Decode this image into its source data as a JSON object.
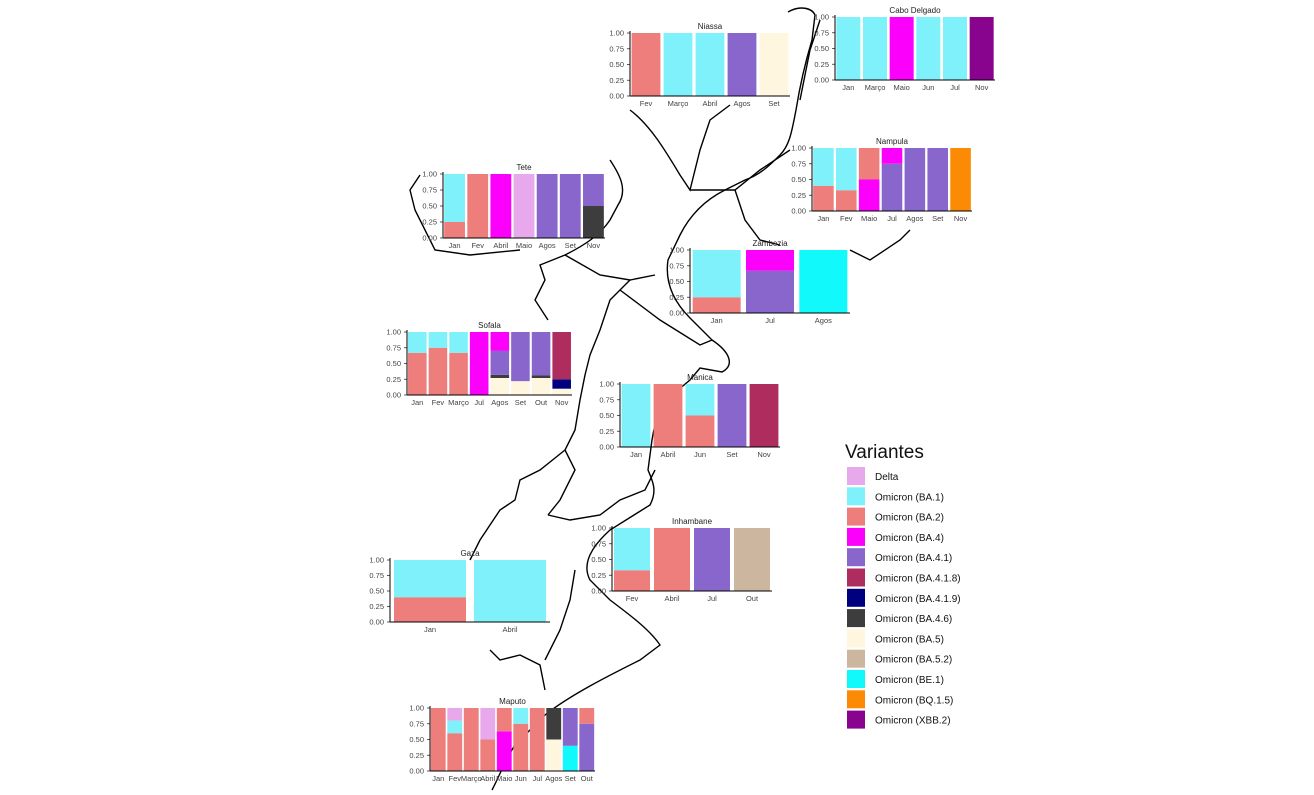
{
  "legend": {
    "title": "Variantes",
    "items": [
      {
        "key": "Delta",
        "label": "Delta",
        "color": "#e8a9ec"
      },
      {
        "key": "BA.1",
        "label": "Omicron (BA.1)",
        "color": "#7ff1fb"
      },
      {
        "key": "BA.2",
        "label": "Omicron (BA.2)",
        "color": "#ee7e7c"
      },
      {
        "key": "BA.4",
        "label": "Omicron (BA.4)",
        "color": "#fb00fb"
      },
      {
        "key": "BA.4.1",
        "label": "Omicron (BA.4.1)",
        "color": "#8866cc"
      },
      {
        "key": "BA.4.1.8",
        "label": "Omicron (BA.4.1.8)",
        "color": "#ae2d5e"
      },
      {
        "key": "BA.4.1.9",
        "label": "Omicron (BA.4.1.9)",
        "color": "#00007f"
      },
      {
        "key": "BA.4.6",
        "label": "Omicron (BA.4.6)",
        "color": "#3d3d3d"
      },
      {
        "key": "BA.5",
        "label": "Omicron (BA.5)",
        "color": "#fff6df"
      },
      {
        "key": "BA.5.2",
        "label": "Omicron (BA.5.2)",
        "color": "#cdb6a0"
      },
      {
        "key": "BE.1",
        "label": "Omicron (BE.1)",
        "color": "#12f9fb"
      },
      {
        "key": "BQ.1.5",
        "label": "Omicron (BQ.1.5)",
        "color": "#fb8b05"
      },
      {
        "key": "XBB.2",
        "label": "Omicron (XBB.2)",
        "color": "#88048e"
      }
    ]
  },
  "chart_data": [
    {
      "type": "bar",
      "stacked": true,
      "title": "Niassa",
      "ylim": [
        0,
        1
      ],
      "yticks": [
        "0.00",
        "0.25",
        "0.50",
        "0.75",
        "1.00"
      ],
      "bars": [
        {
          "label": "Fev",
          "stack": [
            [
              "BA.2",
              1
            ]
          ]
        },
        {
          "label": "Março",
          "stack": [
            [
              "BA.1",
              1
            ]
          ]
        },
        {
          "label": "Abril",
          "stack": [
            [
              "BA.1",
              1
            ]
          ]
        },
        {
          "label": "Agos",
          "stack": [
            [
              "BA.4.1",
              1
            ]
          ]
        },
        {
          "label": "Set",
          "stack": [
            [
              "BA.5",
              1
            ]
          ]
        }
      ]
    },
    {
      "type": "bar",
      "stacked": true,
      "title": "Cabo Delgado",
      "ylim": [
        0,
        1
      ],
      "yticks": [
        "0.00",
        "0.25",
        "0.50",
        "0.75",
        "1.00"
      ],
      "bars": [
        {
          "label": "Jan",
          "stack": [
            [
              "BA.1",
              1
            ]
          ]
        },
        {
          "label": "Março",
          "stack": [
            [
              "BA.1",
              1
            ]
          ]
        },
        {
          "label": "Maio",
          "stack": [
            [
              "BA.4",
              1
            ]
          ]
        },
        {
          "label": "Jun",
          "stack": [
            [
              "BA.1",
              1
            ]
          ]
        },
        {
          "label": "Jul",
          "stack": [
            [
              "BA.1",
              1
            ]
          ]
        },
        {
          "label": "Nov",
          "stack": [
            [
              "XBB.2",
              1
            ]
          ]
        }
      ]
    },
    {
      "type": "bar",
      "stacked": true,
      "title": "Nampula",
      "ylim": [
        0,
        1
      ],
      "yticks": [
        "0.00",
        "0.25",
        "0.50",
        "0.75",
        "1.00"
      ],
      "bars": [
        {
          "label": "Jan",
          "stack": [
            [
              "BA.2",
              0.4
            ],
            [
              "BA.1",
              0.6
            ]
          ]
        },
        {
          "label": "Fev",
          "stack": [
            [
              "BA.2",
              0.33
            ],
            [
              "BA.1",
              0.67
            ]
          ]
        },
        {
          "label": "Maio",
          "stack": [
            [
              "BA.4",
              0.5
            ],
            [
              "BA.2",
              0.5
            ]
          ]
        },
        {
          "label": "Jul",
          "stack": [
            [
              "BA.4.1",
              0.75
            ],
            [
              "BA.4",
              0.25
            ]
          ]
        },
        {
          "label": "Agos",
          "stack": [
            [
              "BA.4.1",
              1
            ]
          ]
        },
        {
          "label": "Set",
          "stack": [
            [
              "BA.4.1",
              1
            ]
          ]
        },
        {
          "label": "Nov",
          "stack": [
            [
              "BQ.1.5",
              1
            ]
          ]
        }
      ]
    },
    {
      "type": "bar",
      "stacked": true,
      "title": "Tete",
      "ylim": [
        0,
        1
      ],
      "yticks": [
        "0.00",
        "0.25",
        "0.50",
        "0.75",
        "1.00"
      ],
      "bars": [
        {
          "label": "Jan",
          "stack": [
            [
              "BA.2",
              0.25
            ],
            [
              "BA.1",
              0.75
            ]
          ]
        },
        {
          "label": "Fev",
          "stack": [
            [
              "BA.2",
              1
            ]
          ]
        },
        {
          "label": "Abril",
          "stack": [
            [
              "BA.4",
              1
            ]
          ]
        },
        {
          "label": "Maio",
          "stack": [
            [
              "Delta",
              1
            ]
          ]
        },
        {
          "label": "Agos",
          "stack": [
            [
              "BA.4.1",
              1
            ]
          ]
        },
        {
          "label": "Set",
          "stack": [
            [
              "BA.4.1",
              1
            ]
          ]
        },
        {
          "label": "Nov",
          "stack": [
            [
              "BA.4.6",
              0.5
            ],
            [
              "BA.4.1",
              0.5
            ]
          ]
        }
      ]
    },
    {
      "type": "bar",
      "stacked": true,
      "title": "Zambezia",
      "ylim": [
        0,
        1
      ],
      "yticks": [
        "0.00",
        "0.25",
        "0.50",
        "0.75",
        "1.00"
      ],
      "bars": [
        {
          "label": "Jan",
          "stack": [
            [
              "BA.2",
              0.25
            ],
            [
              "BA.1",
              0.75
            ]
          ]
        },
        {
          "label": "Jul",
          "stack": [
            [
              "BA.4.1",
              0.67
            ],
            [
              "BA.4",
              0.33
            ]
          ]
        },
        {
          "label": "Agos",
          "stack": [
            [
              "BE.1",
              1
            ]
          ]
        }
      ]
    },
    {
      "type": "bar",
      "stacked": true,
      "title": "Sofala",
      "ylim": [
        0,
        1
      ],
      "yticks": [
        "0.00",
        "0.25",
        "0.50",
        "0.75",
        "1.00"
      ],
      "bars": [
        {
          "label": "Jan",
          "stack": [
            [
              "BA.2",
              0.67
            ],
            [
              "BA.1",
              0.33
            ]
          ]
        },
        {
          "label": "Fev",
          "stack": [
            [
              "BA.2",
              0.75
            ],
            [
              "BA.1",
              0.25
            ]
          ]
        },
        {
          "label": "Março",
          "stack": [
            [
              "BA.2",
              0.67
            ],
            [
              "BA.1",
              0.33
            ]
          ]
        },
        {
          "label": "Jul",
          "stack": [
            [
              "BA.4",
              1
            ]
          ]
        },
        {
          "label": "Agos",
          "stack": [
            [
              "BA.5",
              0.27
            ],
            [
              "BA.4.6",
              0.05
            ],
            [
              "BA.4.1",
              0.38
            ],
            [
              "BA.4",
              0.3
            ]
          ]
        },
        {
          "label": "Set",
          "stack": [
            [
              "BA.5",
              0.22
            ],
            [
              "BA.4.1",
              0.78
            ]
          ]
        },
        {
          "label": "Out",
          "stack": [
            [
              "BA.5",
              0.27
            ],
            [
              "BA.4.6",
              0.04
            ],
            [
              "BA.4.1",
              0.69
            ]
          ]
        },
        {
          "label": "Nov",
          "stack": [
            [
              "BA.5",
              0.1
            ],
            [
              "BA.4.1.9",
              0.15
            ],
            [
              "BA.4.1.8",
              0.75
            ]
          ]
        }
      ]
    },
    {
      "type": "bar",
      "stacked": true,
      "title": "Manica",
      "ylim": [
        0,
        1
      ],
      "yticks": [
        "0.00",
        "0.25",
        "0.50",
        "0.75",
        "1.00"
      ],
      "bars": [
        {
          "label": "Jan",
          "stack": [
            [
              "BA.1",
              1
            ]
          ]
        },
        {
          "label": "Abril",
          "stack": [
            [
              "BA.2",
              1
            ]
          ]
        },
        {
          "label": "Jun",
          "stack": [
            [
              "BA.2",
              0.5
            ],
            [
              "BA.1",
              0.5
            ]
          ]
        },
        {
          "label": "Set",
          "stack": [
            [
              "BA.4.1",
              1
            ]
          ]
        },
        {
          "label": "Nov",
          "stack": [
            [
              "BA.4.1.8",
              1
            ]
          ]
        }
      ]
    },
    {
      "type": "bar",
      "stacked": true,
      "title": "Inhambane",
      "ylim": [
        0,
        1
      ],
      "yticks": [
        "0.00",
        "0.25",
        "0.50",
        "0.75",
        "1.00"
      ],
      "bars": [
        {
          "label": "Fev",
          "stack": [
            [
              "BA.2",
              0.33
            ],
            [
              "BA.1",
              0.67
            ]
          ]
        },
        {
          "label": "Abril",
          "stack": [
            [
              "BA.2",
              1
            ]
          ]
        },
        {
          "label": "Jul",
          "stack": [
            [
              "BA.4.1",
              1
            ]
          ]
        },
        {
          "label": "Out",
          "stack": [
            [
              "BA.5.2",
              1
            ]
          ]
        }
      ]
    },
    {
      "type": "bar",
      "stacked": true,
      "title": "Gaza",
      "ylim": [
        0,
        1
      ],
      "yticks": [
        "0.00",
        "0.25",
        "0.50",
        "0.75",
        "1.00"
      ],
      "bars": [
        {
          "label": "Jan",
          "stack": [
            [
              "BA.2",
              0.4
            ],
            [
              "BA.1",
              0.6
            ]
          ]
        },
        {
          "label": "Abril",
          "stack": [
            [
              "BA.1",
              1
            ]
          ]
        }
      ]
    },
    {
      "type": "bar",
      "stacked": true,
      "title": "Maputo",
      "ylim": [
        0,
        1
      ],
      "yticks": [
        "0.00",
        "0.25",
        "0.50",
        "0.75",
        "1.00"
      ],
      "bars": [
        {
          "label": "Jan",
          "stack": [
            [
              "BA.2",
              1
            ]
          ]
        },
        {
          "label": "Fev",
          "stack": [
            [
              "BA.2",
              0.6
            ],
            [
              "BA.1",
              0.2
            ],
            [
              "Delta",
              0.2
            ]
          ]
        },
        {
          "label": "Março",
          "stack": [
            [
              "BA.2",
              1
            ]
          ]
        },
        {
          "label": "Abril",
          "stack": [
            [
              "BA.2",
              0.5
            ],
            [
              "Delta",
              0.5
            ]
          ]
        },
        {
          "label": "Maio",
          "stack": [
            [
              "BA.4",
              0.63
            ],
            [
              "BA.2",
              0.37
            ]
          ]
        },
        {
          "label": "Jun",
          "stack": [
            [
              "BA.2",
              0.75
            ],
            [
              "BA.1",
              0.25
            ]
          ]
        },
        {
          "label": "Jul",
          "stack": [
            [
              "BA.2",
              1
            ]
          ]
        },
        {
          "label": "Agos",
          "stack": [
            [
              "BA.5",
              0.5
            ],
            [
              "BA.4.6",
              0.5
            ]
          ]
        },
        {
          "label": "Set",
          "stack": [
            [
              "BE.1",
              0.4
            ],
            [
              "BA.4.1",
              0.6
            ]
          ]
        },
        {
          "label": "Out",
          "stack": [
            [
              "BA.4.1",
              0.75
            ],
            [
              "BA.2",
              0.25
            ]
          ]
        }
      ]
    }
  ]
}
